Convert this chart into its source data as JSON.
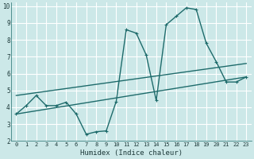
{
  "xlabel": "Humidex (Indice chaleur)",
  "bg_color": "#cce8e8",
  "grid_color": "#b0d8d8",
  "line_color": "#1e6b6b",
  "x_values": [
    0,
    1,
    2,
    3,
    4,
    5,
    6,
    7,
    8,
    9,
    10,
    11,
    12,
    13,
    14,
    15,
    16,
    17,
    18,
    19,
    20,
    21,
    22,
    23
  ],
  "y_main": [
    3.6,
    4.1,
    4.7,
    4.1,
    4.1,
    4.3,
    3.6,
    2.4,
    2.55,
    2.6,
    4.35,
    8.6,
    8.4,
    7.1,
    4.4,
    8.9,
    9.4,
    9.9,
    9.8,
    7.8,
    6.7,
    5.5,
    5.5,
    5.8
  ],
  "y_trend1_x": [
    0,
    23
  ],
  "y_trend1_y": [
    3.6,
    5.8
  ],
  "y_trend2_x": [
    0,
    23
  ],
  "y_trend2_y": [
    4.7,
    6.6
  ],
  "xlim": [
    -0.5,
    23.5
  ],
  "ylim": [
    2,
    10.2
  ],
  "xticks": [
    0,
    1,
    2,
    3,
    4,
    5,
    6,
    7,
    8,
    9,
    10,
    11,
    12,
    13,
    14,
    15,
    16,
    17,
    18,
    19,
    20,
    21,
    22,
    23
  ],
  "yticks": [
    2,
    3,
    4,
    5,
    6,
    7,
    8,
    9,
    10
  ],
  "marker_size": 2.5,
  "line_width": 1.0
}
